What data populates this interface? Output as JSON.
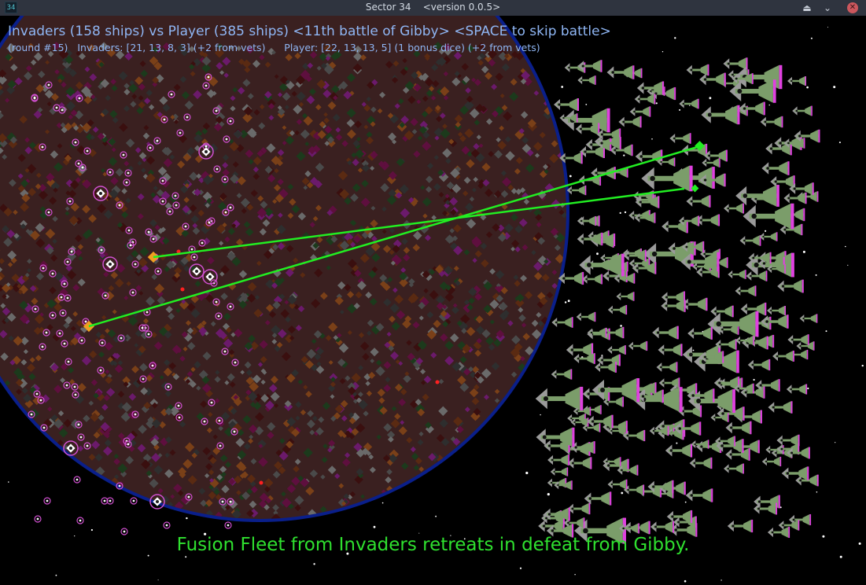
{
  "window": {
    "badge": "34",
    "title": "Sector 34    <version 0.0.5>",
    "shade_icon": "eject-icon",
    "shade_glyph": "⏏",
    "minimize_icon": "chevron-down-icon",
    "minimize_glyph": "⌄",
    "close_icon": "close-icon",
    "close_glyph": "✕"
  },
  "battle": {
    "header": "Invaders (158 ships) vs Player (385 ships) <11th battle of Gibby> <SPACE to skip battle>",
    "status": "(round #15)   Invaders: [21, 13, 8, 3] (+2 from vets)      Player: [22, 13, 13, 5] (1 bonus dice) (+2 from vets)",
    "message": "Fusion Fleet from Invaders retreats in defeat from Gibby."
  },
  "colors": {
    "hud_text": "#8fb6f4",
    "message_text": "#2fe02f",
    "laser": "#22ee22",
    "invader_ship": "#f0a020",
    "player_ship_body": "#7b9d6a",
    "player_ship_wing": "#9a9a9a",
    "player_ship_engine": "#e040e0",
    "enemy_ring": "#d050d0",
    "planet_rim": "#0a1f8a",
    "planet_palette": [
      "#6b1a6b",
      "#5a2a12",
      "#7a4018",
      "#4a4a4a",
      "#2e2e2e",
      "#1c3a1c",
      "#5e0f3e",
      "#6a6a6a",
      "#3a0f0f"
    ],
    "background": "#000000",
    "titlebar": "#2f343f"
  }
}
